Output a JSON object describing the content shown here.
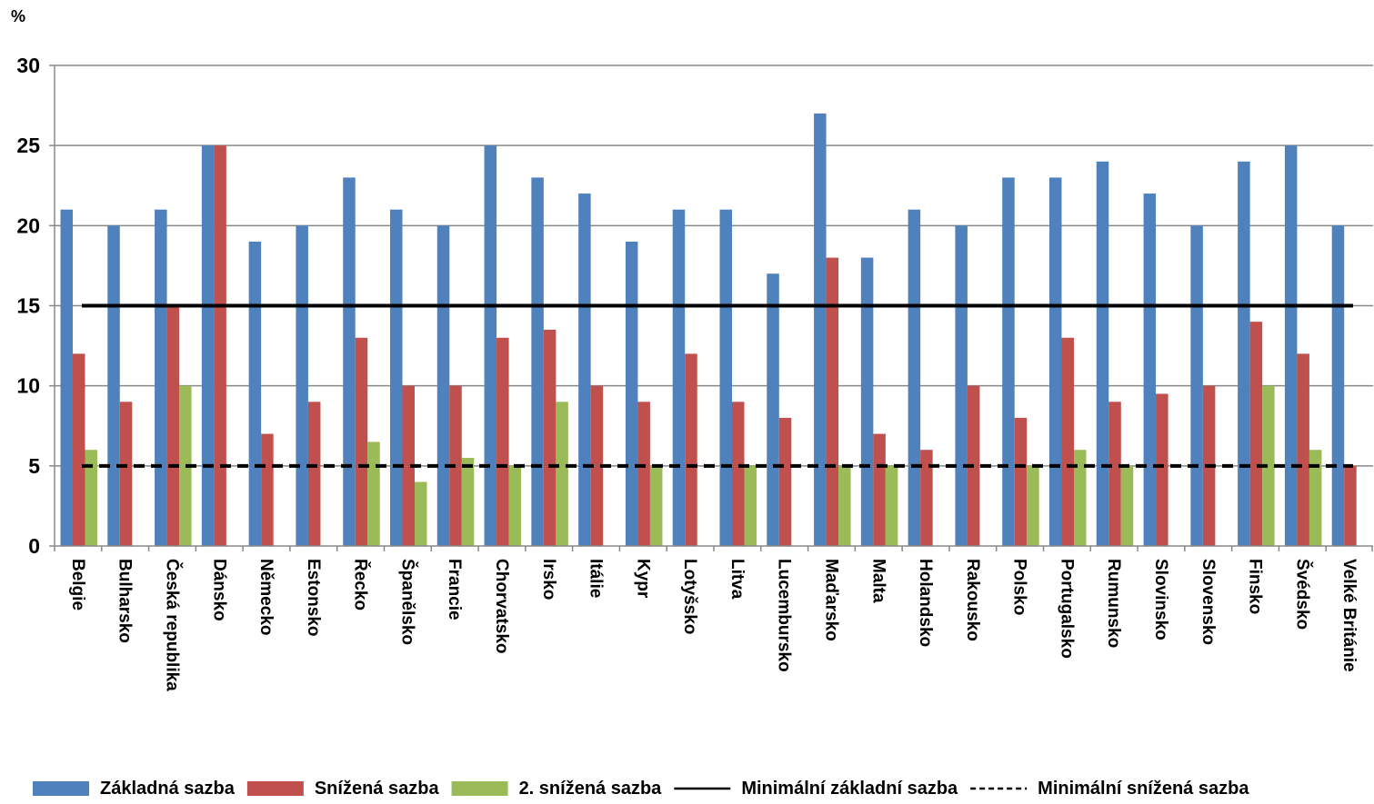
{
  "chart_data": {
    "type": "bar",
    "ylabel": "%",
    "ylim": [
      0,
      30
    ],
    "yticks": [
      "0",
      "5",
      "10",
      "15",
      "20",
      "25",
      "30"
    ],
    "grid": true,
    "legend_position": "bottom",
    "categories": [
      "Belgie",
      "Bulharsko",
      "Česká republika",
      "Dánsko",
      "Německo",
      "Estonsko",
      "Řecko",
      "Španělsko",
      "Francie",
      "Chorvatsko",
      "Irsko",
      "Itálie",
      "Kypr",
      "Lotyšsko",
      "Litva",
      "Lucembursko",
      "Maďarsko",
      "Malta",
      "Holandsko",
      "Rakousko",
      "Polsko",
      "Portugalsko",
      "Rumunsko",
      "Slovinsko",
      "Slovensko",
      "Finsko",
      "Švédsko",
      "Velké Británie"
    ],
    "series": [
      {
        "name": "Základná sazba",
        "color": "#4f81bd",
        "values": [
          21,
          20,
          21,
          25,
          19,
          20,
          23,
          21,
          20,
          25,
          23,
          22,
          19,
          21,
          21,
          17,
          27,
          18,
          21,
          20,
          23,
          23,
          24,
          22,
          20,
          24,
          25,
          20
        ]
      },
      {
        "name": "Snížená sazba",
        "color": "#c0504d",
        "values": [
          12,
          9,
          15,
          25,
          7,
          9,
          13,
          10,
          10,
          13,
          13.5,
          10,
          9,
          12,
          9,
          8,
          18,
          7,
          6,
          10,
          8,
          13,
          9,
          9.5,
          10,
          14,
          12,
          5
        ]
      },
      {
        "name": "2. snížená sazba",
        "color": "#9bbb59",
        "values": [
          6,
          null,
          10,
          null,
          null,
          null,
          6.5,
          4,
          5.5,
          5,
          9,
          null,
          5,
          null,
          5,
          null,
          5,
          5,
          null,
          null,
          5,
          6,
          5,
          null,
          null,
          10,
          6,
          null
        ]
      }
    ],
    "reference_lines": [
      {
        "name": "Minimální základní sazba",
        "value": 15,
        "style": "solid",
        "color": "#000000"
      },
      {
        "name": "Minimální snížená sazba",
        "value": 5,
        "style": "dashed",
        "color": "#000000"
      }
    ]
  }
}
